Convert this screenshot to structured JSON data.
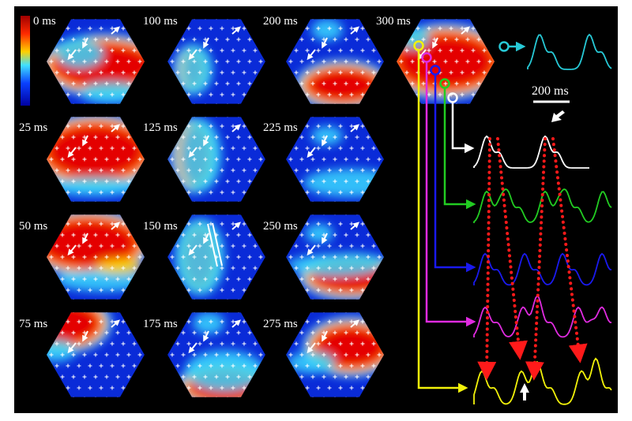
{
  "figure": {
    "colorbar_label": "0 ms",
    "time_labels": [
      "0 ms",
      "25 ms",
      "50 ms",
      "75 ms",
      "100 ms",
      "125 ms",
      "150 ms",
      "175 ms",
      "200 ms",
      "225 ms",
      "250 ms",
      "275 ms",
      "300 ms"
    ],
    "scale_bar_label": "200 ms",
    "colors": {
      "background": "#000000",
      "activation_early": "#d60000",
      "activation_late": "#0a1fd0",
      "trace_cyan": "#27c9d6",
      "trace_white": "#ffffff",
      "trace_green": "#22cc22",
      "trace_blue": "#1a1aee",
      "trace_magenta": "#e02be0",
      "trace_yellow": "#f2f20a",
      "timing_dots": "#ff1a1a"
    }
  }
}
